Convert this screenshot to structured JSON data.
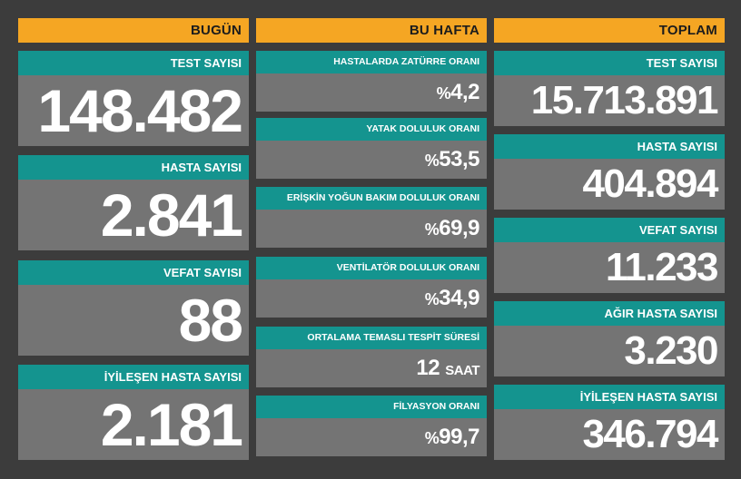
{
  "today": {
    "header": "BUGÜN",
    "items": [
      {
        "label": "TEST SAYISI",
        "value": "148.482"
      },
      {
        "label": "HASTA SAYISI",
        "value": "2.841"
      },
      {
        "label": "VEFAT SAYISI",
        "value": "88"
      },
      {
        "label": "İYİLEŞEN HASTA SAYISI",
        "value": "2.181"
      }
    ]
  },
  "week": {
    "header": "BU HAFTA",
    "items": [
      {
        "label": "HASTALARDA ZATÜRRE ORANI",
        "prefix": "%",
        "value": "4,2"
      },
      {
        "label": "YATAK DOLULUK ORANI",
        "prefix": "%",
        "value": "53,5"
      },
      {
        "label": "ERİŞKİN YOĞUN BAKIM DOLULUK ORANI",
        "prefix": "%",
        "value": "69,9"
      },
      {
        "label": "VENTİLATÖR DOLULUK ORANI",
        "prefix": "%",
        "value": "34,9"
      },
      {
        "label": "ORTALAMA TEMASLI TESPİT SÜRESİ",
        "value": "12",
        "unit": "SAAT"
      },
      {
        "label": "FİLYASYON ORANI",
        "prefix": "%",
        "value": "99,7"
      }
    ]
  },
  "total": {
    "header": "TOPLAM",
    "items": [
      {
        "label": "TEST SAYISI",
        "value": "15.713.891"
      },
      {
        "label": "HASTA SAYISI",
        "value": "404.894"
      },
      {
        "label": "VEFAT SAYISI",
        "value": "11.233"
      },
      {
        "label": "AĞIR HASTA SAYISI",
        "value": "3.230"
      },
      {
        "label": "İYİLEŞEN HASTA SAYISI",
        "value": "346.794"
      }
    ]
  },
  "colors": {
    "background": "#3c3c3c",
    "header": "#f5a623",
    "label": "#14948f",
    "panel": "#747474"
  }
}
